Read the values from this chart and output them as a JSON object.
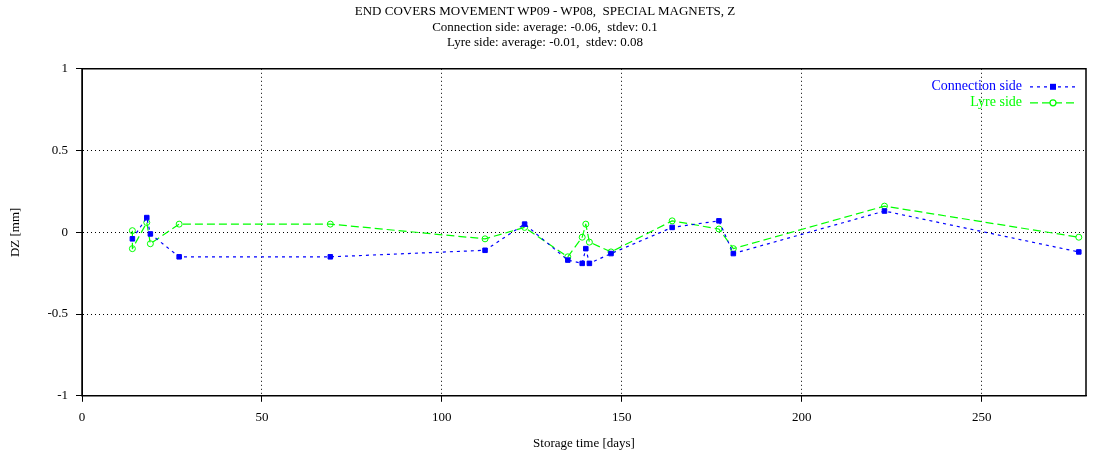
{
  "chart_data": {
    "type": "line",
    "title": "END COVERS MOVEMENT WP09 - WP08,  SPECIAL MAGNETS, Z",
    "subtitle": "Connection side: average: -0.06,  stdev: 0.1\nLyre side: average: -0.01,  stdev: 0.08",
    "xlabel": "Storage time [days]",
    "ylabel": "DZ [mm]",
    "xlim": [
      0,
      279
    ],
    "xticks": [
      0,
      50,
      100,
      150,
      200,
      250
    ],
    "ylim": [
      -1,
      1
    ],
    "yticks": [
      -1,
      -0.5,
      0,
      0.5,
      1
    ],
    "grid": true,
    "legend": "top right",
    "series": [
      {
        "name": "Connection side",
        "color": "#0000ff",
        "marker": "square",
        "line_style": "dotted",
        "x": [
          14,
          18,
          19,
          27,
          69,
          112,
          123,
          135,
          139,
          140,
          141,
          147,
          164,
          177,
          181,
          223,
          277
        ],
        "values": [
          -0.04,
          0.09,
          -0.01,
          -0.15,
          -0.15,
          -0.11,
          0.05,
          -0.17,
          -0.19,
          -0.1,
          -0.19,
          -0.13,
          0.03,
          0.07,
          -0.13,
          0.13,
          -0.12
        ]
      },
      {
        "name": "Lyre side",
        "color": "#00ff00",
        "marker": "circle",
        "line_style": "dashed",
        "x": [
          14,
          14,
          18,
          19,
          27,
          69,
          112,
          123,
          135,
          139,
          140,
          141,
          147,
          164,
          177,
          181,
          223,
          277
        ],
        "values": [
          0.01,
          -0.1,
          0.06,
          -0.07,
          0.05,
          0.05,
          -0.04,
          0.03,
          -0.15,
          -0.03,
          0.05,
          -0.06,
          -0.12,
          0.07,
          0.02,
          -0.1,
          0.16,
          -0.03
        ]
      }
    ]
  }
}
